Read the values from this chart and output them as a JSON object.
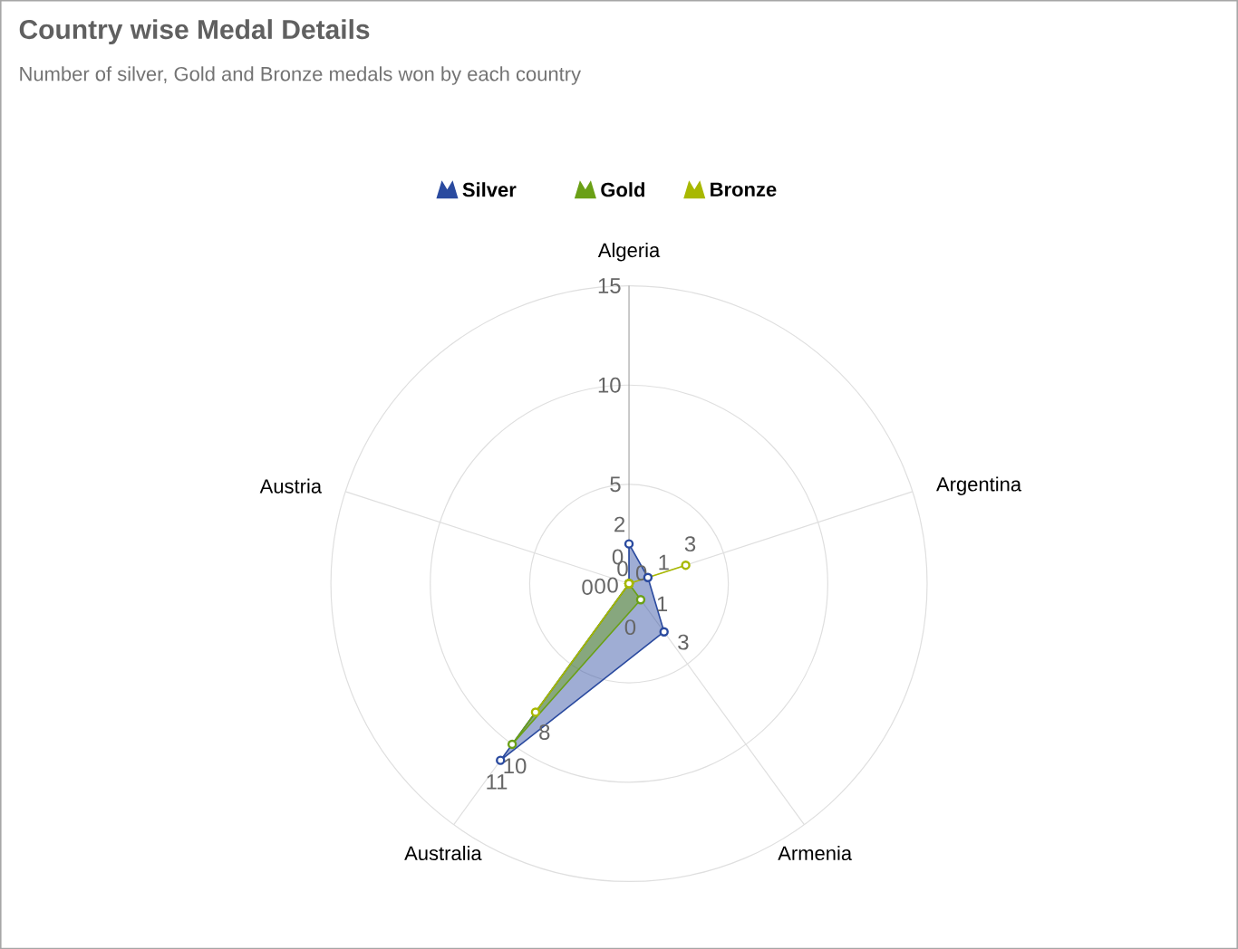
{
  "chart_data": {
    "type": "radar",
    "title": "Country wise Medal Details",
    "subtitle": "Number of silver, Gold and Bronze medals won by each country",
    "categories": [
      "Algeria",
      "Argentina",
      "Armenia",
      "Australia",
      "Austria"
    ],
    "series": [
      {
        "name": "Silver",
        "color": "#2a4a9f",
        "values": [
          2,
          1,
          3,
          11,
          0
        ]
      },
      {
        "name": "Gold",
        "color": "#6aa016",
        "values": [
          0,
          0,
          1,
          10,
          0
        ]
      },
      {
        "name": "Bronze",
        "color": "#a8b800",
        "values": [
          0,
          3,
          0,
          8,
          0
        ]
      }
    ],
    "ylim": [
      0,
      15
    ],
    "yticks": [
      5,
      10,
      15
    ],
    "grid": true,
    "legend": "top",
    "marker": "circle",
    "data_labels": true
  }
}
